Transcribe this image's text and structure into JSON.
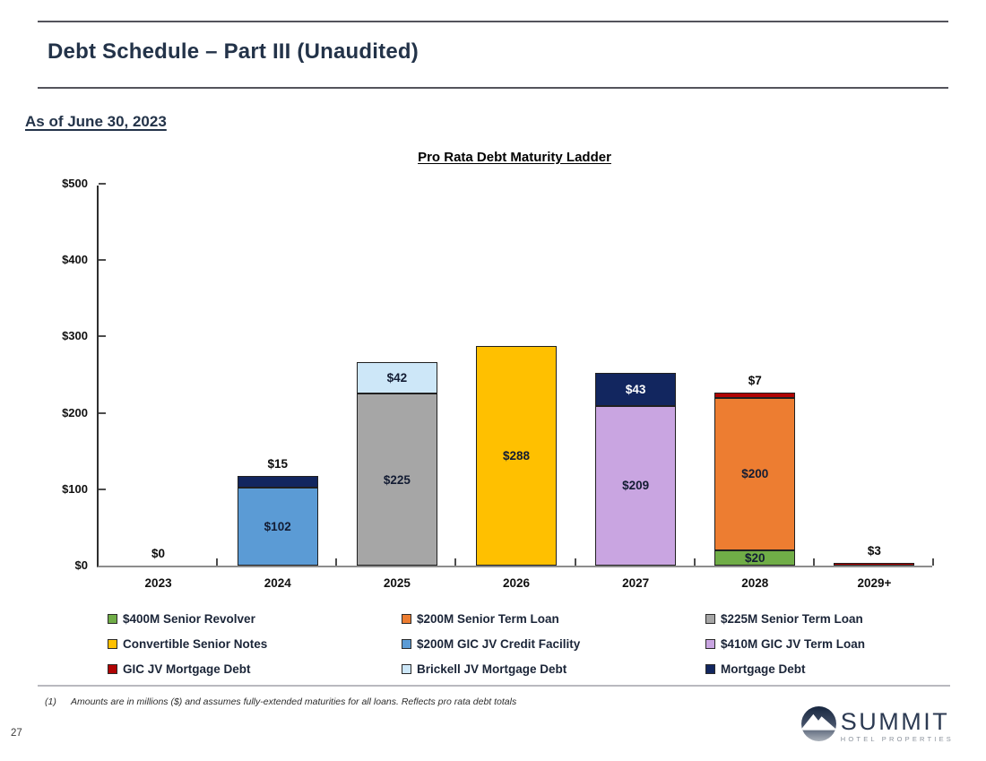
{
  "slide": {
    "title": "Debt Schedule – Part III (Unaudited)",
    "as_of_date": "As of June 30, 2023",
    "page_number": "27",
    "footnote_marker": "(1)",
    "footnote_text": "Amounts are in millions ($) and assumes fully-extended maturities for all loans. Reflects pro rata debt totals"
  },
  "logo": {
    "name": "SUMMIT",
    "tagline": "HOTEL PROPERTIES",
    "icon": "mountain-circle-icon"
  },
  "theme": {
    "heading_color": "#233349",
    "rule_dark": "#54545c",
    "rule_light": "#b9b9bf",
    "label_dark": "#131c33",
    "label_light": "#ffffff"
  },
  "chart_data": {
    "type": "bar",
    "stacked": true,
    "title": "Pro Rata Debt Maturity Ladder",
    "categories": [
      "2023",
      "2024",
      "2025",
      "2026",
      "2027",
      "2028",
      "2029+"
    ],
    "xlabel": "",
    "ylabel": "",
    "ylim": [
      0,
      500
    ],
    "yticks": [
      0,
      100,
      200,
      300,
      400,
      500
    ],
    "ytick_labels": [
      "$0",
      "$100",
      "$200",
      "$300",
      "$400",
      "$500"
    ],
    "grid": false,
    "legend_position": "bottom",
    "value_prefix": "$",
    "zero_bar_label": "$0",
    "series": [
      {
        "name": "$400M Senior Revolver",
        "color": "#70AD47",
        "values": [
          0,
          0,
          0,
          0,
          0,
          20,
          0
        ]
      },
      {
        "name": "$200M Senior Term Loan",
        "color": "#ED7D31",
        "values": [
          0,
          0,
          0,
          0,
          0,
          200,
          0
        ]
      },
      {
        "name": "$225M Senior Term Loan",
        "color": "#A6A6A6",
        "values": [
          0,
          0,
          225,
          0,
          0,
          0,
          0
        ]
      },
      {
        "name": "Convertible Senior Notes",
        "color": "#FFC000",
        "values": [
          0,
          0,
          0,
          288,
          0,
          0,
          0
        ]
      },
      {
        "name": "$200M GIC JV Credit Facility",
        "color": "#5B9BD5",
        "values": [
          0,
          102,
          0,
          0,
          0,
          0,
          0
        ]
      },
      {
        "name": "$410M GIC JV Term Loan",
        "color": "#C9A5E1",
        "values": [
          0,
          0,
          0,
          0,
          209,
          0,
          0
        ]
      },
      {
        "name": "GIC JV Mortgage Debt",
        "color": "#B00404",
        "values": [
          0,
          0,
          0,
          0,
          0,
          7,
          3
        ]
      },
      {
        "name": "Brickell JV Mortgage Debt",
        "color": "#CDE7F8",
        "values": [
          0,
          0,
          42,
          0,
          0,
          0,
          0
        ]
      },
      {
        "name": "Mortgage Debt",
        "color": "#12265F",
        "values": [
          0,
          15,
          0,
          0,
          43,
          0,
          0
        ]
      }
    ]
  }
}
